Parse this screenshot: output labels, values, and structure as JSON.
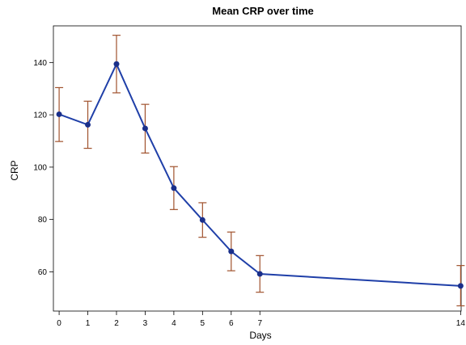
{
  "chart_data": {
    "type": "line",
    "title": "Mean CRP over time",
    "xlabel": "Days",
    "ylabel": "CRP",
    "x_ticks": [
      0,
      1,
      2,
      3,
      4,
      5,
      6,
      7,
      14
    ],
    "y_ticks": [
      60,
      80,
      100,
      120,
      140
    ],
    "xlim": [
      -0.2,
      14.3
    ],
    "ylim": [
      45,
      154
    ],
    "grid": false,
    "legend": "none",
    "series": [
      {
        "x": [
          0,
          1,
          2,
          3,
          4,
          5,
          6,
          7,
          14
        ],
        "y": [
          120.2,
          116.2,
          139.4,
          114.8,
          92.0,
          79.8,
          67.8,
          59.2,
          54.6
        ],
        "upper": [
          130.4,
          125.2,
          150.4,
          124.0,
          100.2,
          86.4,
          75.2,
          66.2,
          62.4
        ],
        "lower": [
          109.8,
          107.2,
          128.4,
          105.4,
          83.8,
          73.2,
          60.4,
          52.2,
          47.0
        ]
      }
    ],
    "colors": {
      "line": "#1f3fa8",
      "marker": "#1a2f8a",
      "error_bar": "#a0522d",
      "axis": "#000000"
    }
  }
}
